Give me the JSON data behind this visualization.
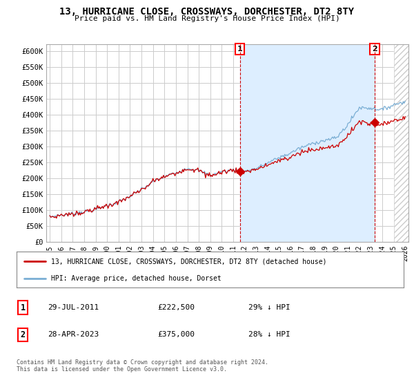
{
  "title": "13, HURRICANE CLOSE, CROSSWAYS, DORCHESTER, DT2 8TY",
  "subtitle": "Price paid vs. HM Land Registry's House Price Index (HPI)",
  "background_color": "#ffffff",
  "grid_color": "#cccccc",
  "hpi_color": "#7aaed4",
  "price_color": "#cc0000",
  "fill_color": "#ddeeff",
  "hatch_color": "#bbbbbb",
  "legend_label_red": "13, HURRICANE CLOSE, CROSSWAYS, DORCHESTER, DT2 8TY (detached house)",
  "legend_label_blue": "HPI: Average price, detached house, Dorset",
  "note1_label": "1",
  "note1_date": "29-JUL-2011",
  "note1_price": "£222,500",
  "note1_hpi": "29% ↓ HPI",
  "note2_label": "2",
  "note2_date": "28-APR-2023",
  "note2_price": "£375,000",
  "note2_hpi": "28% ↓ HPI",
  "footer": "Contains HM Land Registry data © Crown copyright and database right 2024.\nThis data is licensed under the Open Government Licence v3.0.",
  "marker1_x": 2011.58,
  "marker1_y": 222500,
  "marker2_x": 2023.33,
  "marker2_y": 375000,
  "xlim_left": 1994.7,
  "xlim_right": 2026.3,
  "hatch_start": 2025.0,
  "ylim": [
    0,
    620000
  ],
  "yticks": [
    0,
    50000,
    100000,
    150000,
    200000,
    250000,
    300000,
    350000,
    400000,
    450000,
    500000,
    550000,
    600000
  ],
  "ytick_labels": [
    "£0",
    "£50K",
    "£100K",
    "£150K",
    "£200K",
    "£250K",
    "£300K",
    "£350K",
    "£400K",
    "£450K",
    "£500K",
    "£550K",
    "£600K"
  ],
  "xtick_years": [
    1995,
    1996,
    1997,
    1998,
    1999,
    2000,
    2001,
    2002,
    2003,
    2004,
    2005,
    2006,
    2007,
    2008,
    2009,
    2010,
    2011,
    2012,
    2013,
    2014,
    2015,
    2016,
    2017,
    2018,
    2019,
    2020,
    2021,
    2022,
    2023,
    2024,
    2025,
    2026
  ]
}
